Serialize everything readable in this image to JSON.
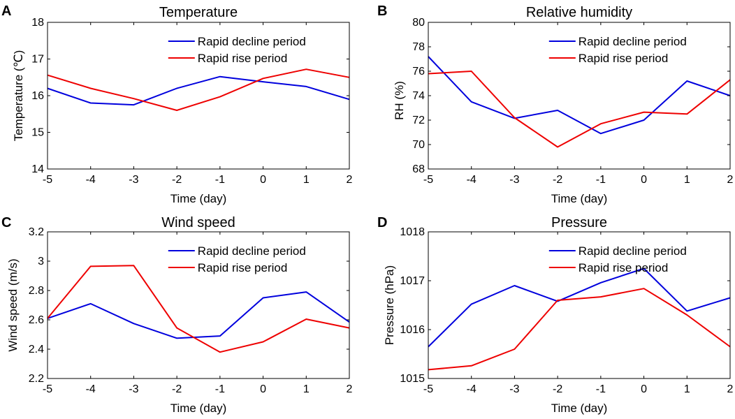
{
  "chart_data": [
    {
      "panel": "A",
      "type": "line",
      "title": "Temperature",
      "xlabel": "Time (day)",
      "ylabel": "Temperature (℃)",
      "x": [
        -5,
        -4,
        -3,
        -2,
        -1,
        0,
        1,
        2
      ],
      "xlim": [
        -5,
        2
      ],
      "ylim": [
        14,
        18
      ],
      "yticks": [
        "14",
        "15",
        "16",
        "17",
        "18"
      ],
      "xticks": [
        "-5",
        "-4",
        "-3",
        "-2",
        "-1",
        "0",
        "1",
        "2"
      ],
      "legend_position": "top-right",
      "series": [
        {
          "name": "Rapid decline period",
          "color": "#0000dd",
          "values": [
            16.2,
            15.8,
            15.75,
            16.2,
            16.52,
            16.38,
            16.25,
            15.9
          ]
        },
        {
          "name": "Rapid rise period",
          "color": "#ee0000",
          "values": [
            16.56,
            16.2,
            15.92,
            15.6,
            15.97,
            16.47,
            16.72,
            16.5
          ]
        }
      ]
    },
    {
      "panel": "B",
      "type": "line",
      "title": "Relative humidity",
      "xlabel": "Time (day)",
      "ylabel": "RH (%)",
      "x": [
        -5,
        -4,
        -3,
        -2,
        -1,
        0,
        1,
        2
      ],
      "xlim": [
        -5,
        2
      ],
      "ylim": [
        68,
        80
      ],
      "yticks": [
        "68",
        "70",
        "72",
        "74",
        "76",
        "78",
        "80"
      ],
      "xticks": [
        "-5",
        "-4",
        "-3",
        "-2",
        "-1",
        "0",
        "1",
        "2"
      ],
      "legend_position": "top-right",
      "series": [
        {
          "name": "Rapid decline period",
          "color": "#0000dd",
          "values": [
            77.2,
            73.5,
            72.15,
            72.8,
            70.9,
            72.0,
            75.2,
            74.0
          ]
        },
        {
          "name": "Rapid rise period",
          "color": "#ee0000",
          "values": [
            75.8,
            76.0,
            72.2,
            69.8,
            71.7,
            72.65,
            72.5,
            75.3
          ]
        }
      ]
    },
    {
      "panel": "C",
      "type": "line",
      "title": "Wind speed",
      "xlabel": "Time (day)",
      "ylabel": "Wind speed (m/s)",
      "x": [
        -5,
        -4,
        -3,
        -2,
        -1,
        0,
        1,
        2
      ],
      "xlim": [
        -5,
        2
      ],
      "ylim": [
        2.2,
        3.2
      ],
      "yticks": [
        "2.2",
        "2.4",
        "2.6",
        "2.8",
        "3",
        "3.2"
      ],
      "xticks": [
        "-5",
        "-4",
        "-3",
        "-2",
        "-1",
        "0",
        "1",
        "2"
      ],
      "legend_position": "top-right",
      "series": [
        {
          "name": "Rapid decline period",
          "color": "#0000dd",
          "values": [
            2.61,
            2.71,
            2.575,
            2.475,
            2.49,
            2.75,
            2.79,
            2.585
          ]
        },
        {
          "name": "Rapid rise period",
          "color": "#ee0000",
          "values": [
            2.61,
            2.965,
            2.97,
            2.545,
            2.38,
            2.45,
            2.605,
            2.545
          ]
        }
      ]
    },
    {
      "panel": "D",
      "type": "line",
      "title": "Pressure",
      "xlabel": "Time (day)",
      "ylabel": "Pressure (hPa)",
      "x": [
        -5,
        -4,
        -3,
        -2,
        -1,
        0,
        1,
        2
      ],
      "xlim": [
        -5,
        2
      ],
      "ylim": [
        1015,
        1018
      ],
      "yticks": [
        "1015",
        "1016",
        "1017",
        "1018"
      ],
      "xticks": [
        "-5",
        "-4",
        "-3",
        "-2",
        "-1",
        "0",
        "1",
        "2"
      ],
      "legend_position": "top-right",
      "series": [
        {
          "name": "Rapid decline period",
          "color": "#0000dd",
          "values": [
            1015.65,
            1016.52,
            1016.9,
            1016.58,
            1016.96,
            1017.25,
            1016.38,
            1016.65
          ]
        },
        {
          "name": "Rapid rise period",
          "color": "#ee0000",
          "values": [
            1015.18,
            1015.26,
            1015.6,
            1016.6,
            1016.67,
            1016.84,
            1016.3,
            1015.65
          ]
        }
      ]
    }
  ]
}
